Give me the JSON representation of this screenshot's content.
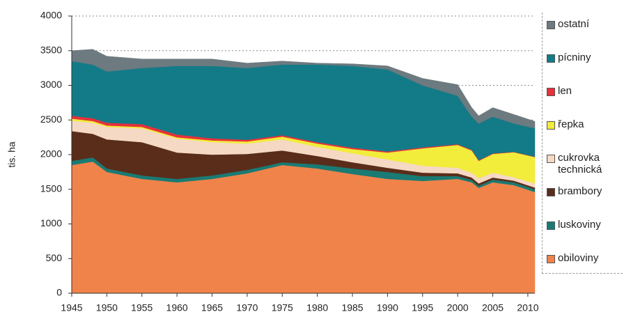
{
  "chart_data": {
    "type": "stacked_area",
    "y_label": "tis. ha",
    "x": [
      1945,
      1948,
      1950,
      1955,
      1960,
      1965,
      1970,
      1975,
      1980,
      1985,
      1990,
      1995,
      2000,
      2002,
      2003,
      2005,
      2008,
      2011
    ],
    "series": [
      {
        "name": "obiloviny",
        "color": "#f0834a",
        "values": [
          1850,
          1900,
          1750,
          1650,
          1600,
          1650,
          1730,
          1850,
          1800,
          1720,
          1650,
          1620,
          1650,
          1600,
          1520,
          1600,
          1560,
          1460
        ]
      },
      {
        "name": "luskoviny",
        "color": "#1a7a74",
        "values": [
          60,
          60,
          50,
          50,
          50,
          50,
          50,
          40,
          60,
          80,
          100,
          70,
          40,
          35,
          30,
          40,
          40,
          40
        ]
      },
      {
        "name": "brambory",
        "color": "#5a2d1a",
        "values": [
          430,
          340,
          420,
          480,
          380,
          300,
          230,
          170,
          120,
          90,
          60,
          50,
          40,
          35,
          35,
          30,
          25,
          25
        ]
      },
      {
        "name": "cukrovka technická",
        "color": "#f5d9c4",
        "values": [
          150,
          160,
          180,
          200,
          200,
          180,
          150,
          160,
          130,
          130,
          120,
          100,
          80,
          70,
          75,
          70,
          50,
          60
        ]
      },
      {
        "name": "řepka",
        "color": "#f2ec3a",
        "values": [
          30,
          25,
          20,
          20,
          20,
          25,
          30,
          40,
          50,
          60,
          100,
          250,
          330,
          320,
          250,
          270,
          360,
          380
        ]
      },
      {
        "name": "len",
        "color": "#e8303a",
        "values": [
          40,
          40,
          40,
          40,
          40,
          30,
          25,
          20,
          20,
          20,
          15,
          15,
          10,
          10,
          10,
          8,
          5,
          5
        ]
      },
      {
        "name": "pícniny",
        "color": "#137b87",
        "values": [
          790,
          775,
          740,
          810,
          990,
          1045,
          1035,
          1020,
          1120,
          1180,
          1185,
          895,
          700,
          480,
          530,
          530,
          410,
          410
        ]
      },
      {
        "name": "ostatní",
        "color": "#6d7a80",
        "values": [
          150,
          220,
          220,
          130,
          100,
          100,
          70,
          50,
          20,
          30,
          50,
          100,
          160,
          130,
          110,
          130,
          130,
          100
        ]
      }
    ],
    "xlim": [
      1945,
      2011
    ],
    "xticks": [
      1945,
      1950,
      1955,
      1960,
      1965,
      1970,
      1975,
      1980,
      1985,
      1990,
      1995,
      2000,
      2005,
      2010
    ],
    "ylim": [
      0,
      4000
    ],
    "yticks": [
      0,
      500,
      1000,
      1500,
      2000,
      2500,
      3000,
      3500,
      4000
    ],
    "grid": true,
    "legend": "right"
  }
}
